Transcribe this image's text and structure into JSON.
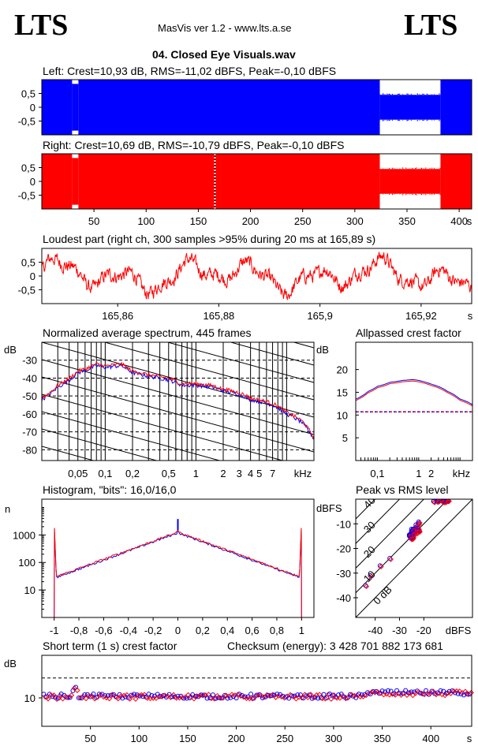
{
  "header": {
    "logo_left": "LTS",
    "logo_right": "LTS",
    "app_title": "MasVis ver 1.2 - www.lts.a.se",
    "file_title": "04. Closed Eye Visuals.wav"
  },
  "colors": {
    "left_channel": "#0000ff",
    "right_channel": "#ff0000",
    "grid": "#000000"
  },
  "chart_data": [
    {
      "id": "left",
      "type": "area",
      "title": "Left: Crest=10,93 dB, RMS=-11,02 dBFS, Peak=-0,10 dBFS",
      "ylim": [
        -1,
        1
      ],
      "y_ticks": [
        "0,5",
        "0",
        "-0,5"
      ],
      "xlim": [
        0,
        412
      ],
      "segments": [
        {
          "x0": 0,
          "x1": 29,
          "amp": 1.0
        },
        {
          "x0": 29,
          "x1": 35,
          "amp": 0.85
        },
        {
          "x0": 35,
          "x1": 324,
          "amp": 1.0
        },
        {
          "x0": 324,
          "x1": 382,
          "amp": 0.45
        },
        {
          "x0": 382,
          "x1": 412,
          "amp": 1.0
        }
      ]
    },
    {
      "id": "right",
      "type": "area",
      "title": "Right: Crest=10,69 dB, RMS=-10,79 dBFS, Peak=-0,10 dBFS",
      "ylim": [
        -1,
        1
      ],
      "y_ticks": [
        "0,5",
        "0",
        "-0,5"
      ],
      "x_ticks": [
        "50",
        "100",
        "150",
        "200",
        "250",
        "300",
        "350",
        "400"
      ],
      "x_tick_values": [
        50,
        100,
        150,
        200,
        250,
        300,
        350,
        400
      ],
      "x_unit": "s",
      "xlim": [
        0,
        412
      ],
      "marker_x": 165.89,
      "segments": [
        {
          "x0": 0,
          "x1": 29,
          "amp": 1.0
        },
        {
          "x0": 29,
          "x1": 35,
          "amp": 0.85
        },
        {
          "x0": 35,
          "x1": 324,
          "amp": 1.0
        },
        {
          "x0": 324,
          "x1": 382,
          "amp": 0.45
        },
        {
          "x0": 382,
          "x1": 412,
          "amp": 1.0
        }
      ]
    },
    {
      "id": "loudest",
      "type": "line",
      "title": "Loudest part (right ch, 300 samples >95% during 20 ms at 165,89 s)",
      "ylim": [
        -1,
        1
      ],
      "y_ticks": [
        "0,5",
        "0",
        "-0,5"
      ],
      "xlim": [
        165.845,
        165.93
      ],
      "x_ticks": [
        "165,86",
        "165,88",
        "165,9",
        "165,92"
      ],
      "x_tick_values": [
        165.86,
        165.88,
        165.9,
        165.92
      ],
      "x_unit": "s"
    },
    {
      "id": "spectrum",
      "type": "line",
      "title": "Normalized average spectrum, 445 frames",
      "ylabel": "dB",
      "y_ticks": [
        "-30",
        "-40",
        "-50",
        "-60",
        "-70",
        "-80"
      ],
      "y_tick_values": [
        -30,
        -40,
        -50,
        -60,
        -70,
        -80
      ],
      "ylim": [
        -86,
        -20
      ],
      "x_ticks": [
        "0,05",
        "0,1",
        "0,2",
        "0,5",
        "1",
        "2",
        "3",
        "4",
        "5",
        "7"
      ],
      "x_tick_values": [
        0.05,
        0.1,
        0.2,
        0.5,
        1,
        2,
        3,
        4,
        5,
        7
      ],
      "x_unit": "kHz",
      "xlim": [
        0.02,
        20
      ],
      "log_x": true,
      "points_f": [
        0.02,
        0.03,
        0.05,
        0.08,
        0.1,
        0.15,
        0.2,
        0.3,
        0.5,
        0.7,
        1,
        1.5,
        2,
        3,
        4,
        5,
        7,
        10,
        15,
        20
      ],
      "points_db": [
        -52,
        -45,
        -37,
        -33,
        -34,
        -33,
        -37,
        -39,
        -41,
        -44,
        -44,
        -45,
        -47,
        -49,
        -52,
        -53,
        -55,
        -60,
        -65,
        -74
      ]
    },
    {
      "id": "allpassed",
      "type": "line",
      "title": "Allpassed crest factor",
      "ylabel": "dB",
      "y_ticks": [
        "20",
        "15",
        "10",
        "5"
      ],
      "y_tick_values": [
        20,
        15,
        10,
        5
      ],
      "ylim": [
        0,
        26
      ],
      "x_ticks": [
        "0,1",
        "1",
        "2",
        "kHz"
      ],
      "x_tick_values": [
        0.1,
        1,
        2
      ],
      "xlim": [
        0.03,
        20
      ],
      "log_x": true,
      "reference_db": 10.7,
      "points_f": [
        0.03,
        0.06,
        0.1,
        0.2,
        0.4,
        0.7,
        1,
        2,
        5,
        10,
        20
      ],
      "points_db": [
        13.5,
        15.2,
        16.3,
        17.2,
        17.6,
        17.8,
        17.6,
        16.8,
        15.2,
        13.5,
        12.3
      ]
    },
    {
      "id": "histogram",
      "type": "line",
      "title": "Histogram, \"bits\": 16,0/16,0",
      "ylabel": "n",
      "y_ticks": [
        "1000",
        "100",
        "10"
      ],
      "y_tick_values": [
        1000,
        100,
        10
      ],
      "ylim": [
        1,
        20000
      ],
      "log_y": true,
      "x_ticks": [
        "-1",
        "-0,8",
        "-0,6",
        "-0,4",
        "-0,2",
        "0",
        "0,2",
        "0,4",
        "0,6",
        "0,8",
        "1"
      ],
      "x_tick_values": [
        -1,
        -0.8,
        -0.6,
        -0.4,
        -0.2,
        0,
        0.2,
        0.4,
        0.6,
        0.8,
        1
      ],
      "xlim": [
        -1.1,
        1.1
      ]
    },
    {
      "id": "peak_rms",
      "type": "scatter",
      "title": "Peak vs RMS level",
      "ylabel": "dBFS",
      "y_ticks": [
        "-10",
        "-20",
        "-30",
        "-40"
      ],
      "y_tick_values": [
        -10,
        -20,
        -30,
        -40
      ],
      "x_ticks": [
        "-40",
        "-30",
        "-20",
        "dBFS"
      ],
      "x_tick_values": [
        -40,
        -30,
        -20
      ],
      "xlim": [
        -48,
        0
      ],
      "ylim": [
        -48,
        0
      ],
      "crest_labels": [
        "40",
        "30",
        "20",
        "10",
        "0 dB"
      ],
      "crest_values": [
        40,
        30,
        20,
        10,
        0
      ]
    },
    {
      "id": "short_term",
      "type": "scatter",
      "title": "Short term (1 s) crest factor",
      "checksum": "Checksum (energy):  3 428 701 882 173 681",
      "ylabel": "dB",
      "y_ticks": [
        "10"
      ],
      "y_tick_values": [
        10
      ],
      "ylim": [
        0,
        25
      ],
      "reference_db": 17,
      "x_ticks": [
        "50",
        "100",
        "150",
        "200",
        "250",
        "300",
        "350",
        "400"
      ],
      "x_tick_values": [
        50,
        100,
        150,
        200,
        250,
        300,
        350,
        400
      ],
      "x_unit": "s",
      "xlim": [
        0,
        442
      ]
    }
  ]
}
